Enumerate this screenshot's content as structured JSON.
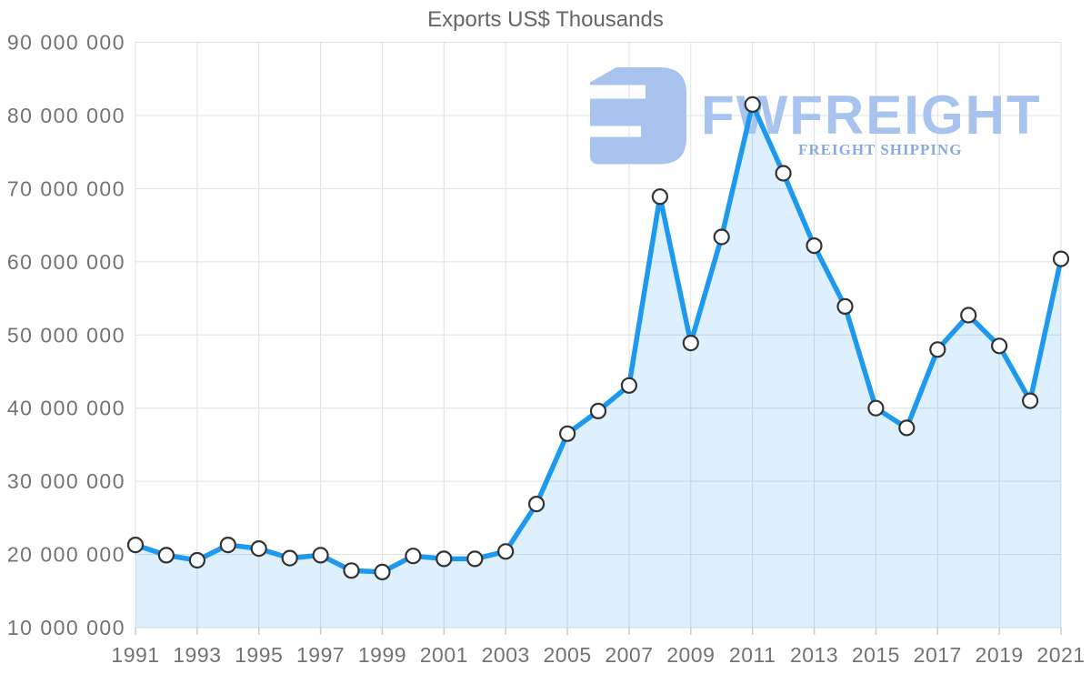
{
  "page": {
    "background": "#ffffff"
  },
  "chart_data": {
    "type": "area",
    "title": "Exports US$ Thousands",
    "xlabel": "",
    "ylabel": "",
    "x": [
      1991,
      1992,
      1993,
      1994,
      1995,
      1996,
      1997,
      1998,
      1999,
      2000,
      2001,
      2002,
      2003,
      2004,
      2005,
      2006,
      2007,
      2008,
      2009,
      2010,
      2011,
      2012,
      2013,
      2014,
      2015,
      2016,
      2017,
      2018,
      2019,
      2020,
      2021
    ],
    "values": [
      21300000,
      19900000,
      19200000,
      21300000,
      20800000,
      19500000,
      19900000,
      17800000,
      17600000,
      19800000,
      19400000,
      19400000,
      20400000,
      26900000,
      36500000,
      39600000,
      43100000,
      68900000,
      48900000,
      63400000,
      81500000,
      72100000,
      62200000,
      53900000,
      40000000,
      37300000,
      48000000,
      52700000,
      48500000,
      41000000,
      60400000
    ],
    "ylim": [
      10000000,
      90000000
    ],
    "ytick_step": 10000000,
    "xtick_step": 2,
    "grid": true,
    "legend": "none",
    "marker_shape": "circle",
    "colors": {
      "line": "#1d99f0",
      "fill": "rgba(32,150,240,0.15)",
      "grid": "#e0e0e0",
      "axis_tick": "#cccccc",
      "marker_fill": "#ffffff",
      "marker_stroke": "#333333",
      "tick_label": "#737373",
      "title": "#666666"
    }
  },
  "watermark": {
    "brand": "FWFREIGHT",
    "tagline": "FREIGHT SHIPPING",
    "logo_color": "#a9c3ef",
    "brand_color": "#a9c3ef",
    "tagline_color": "#8ca8e2"
  }
}
